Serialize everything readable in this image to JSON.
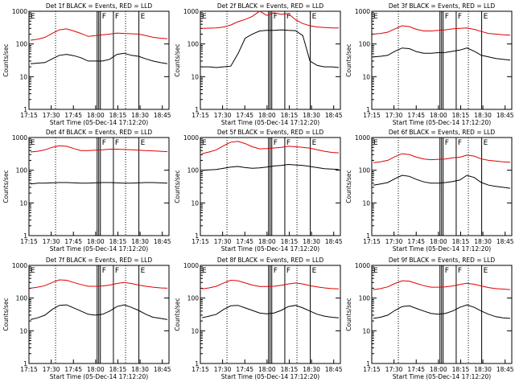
{
  "chart_data": [
    {
      "type": "line",
      "title": "Det 1f BLACK = Events, RED = LLD",
      "ylabel": "Counts/sec",
      "xlabel": "Start Time (05-Dec-14 17:12:20)",
      "x_ticks": [
        "17:15",
        "17:30",
        "17:45",
        "18:00",
        "18:15",
        "18:30",
        "18:45"
      ],
      "y_ticks": [
        "1",
        "10",
        "100",
        "1000"
      ],
      "y_scale": "log",
      "ylim": [
        1,
        1000
      ],
      "markers": [
        "E",
        "F",
        "F",
        "E"
      ],
      "series": [
        {
          "name": "Events",
          "color": "#000000",
          "values": [
            25,
            26,
            27,
            35,
            45,
            48,
            44,
            38,
            30,
            30,
            30,
            34,
            48,
            52,
            45,
            42,
            35,
            30,
            27,
            25
          ]
        },
        {
          "name": "LLD",
          "color": "#e00000",
          "values": [
            130,
            140,
            160,
            210,
            270,
            290,
            250,
            210,
            170,
            180,
            190,
            200,
            215,
            210,
            205,
            200,
            180,
            160,
            150,
            145
          ]
        }
      ]
    },
    {
      "type": "line",
      "title": "Det 2f BLACK = Events, RED = LLD",
      "ylabel": "Counts/sec",
      "xlabel": "Start Time (05-Dec-14 17:12:20)",
      "x_ticks": [
        "17:15",
        "17:30",
        "17:45",
        "18:00",
        "18:15",
        "18:30",
        "18:45"
      ],
      "y_ticks": [
        "1",
        "10",
        "100",
        "1000"
      ],
      "y_scale": "log",
      "ylim": [
        1,
        1000
      ],
      "markers": [
        "E",
        "F",
        "F",
        "E"
      ],
      "series": [
        {
          "name": "Events",
          "color": "#000000",
          "values": [
            20,
            20,
            19,
            20,
            21,
            50,
            150,
            200,
            250,
            260,
            260,
            270,
            260,
            255,
            180,
            30,
            22,
            20,
            20,
            19
          ]
        },
        {
          "name": "LLD",
          "color": "#e00000",
          "values": [
            300,
            305,
            310,
            330,
            380,
            480,
            560,
            700,
            1000,
            750,
            900,
            800,
            850,
            550,
            420,
            360,
            330,
            320,
            310,
            310
          ]
        }
      ]
    },
    {
      "type": "line",
      "title": "Det 3f BLACK = Events, RED = LLD",
      "ylabel": "Counts/sec",
      "xlabel": "Start Time (05-Dec-14 17:12:20)",
      "x_ticks": [
        "17:15",
        "17:30",
        "17:45",
        "18:00",
        "18:15",
        "18:30",
        "18:45"
      ],
      "y_ticks": [
        "1",
        "10",
        "100",
        "1000"
      ],
      "y_scale": "log",
      "ylim": [
        1,
        1000
      ],
      "markers": [
        "E",
        "F",
        "F",
        "E"
      ],
      "series": [
        {
          "name": "Events",
          "color": "#000000",
          "values": [
            40,
            42,
            45,
            60,
            75,
            72,
            58,
            52,
            52,
            54,
            55,
            60,
            65,
            75,
            60,
            45,
            40,
            36,
            34,
            32
          ]
        },
        {
          "name": "LLD",
          "color": "#e00000",
          "values": [
            200,
            210,
            230,
            290,
            360,
            340,
            280,
            250,
            250,
            260,
            270,
            290,
            300,
            310,
            280,
            240,
            210,
            200,
            190,
            185
          ]
        }
      ]
    },
    {
      "type": "line",
      "title": "Det 4f BLACK = Events, RED = LLD",
      "ylabel": "Counts/sec",
      "xlabel": "Start Time (05-Dec-14 17:12:20)",
      "x_ticks": [
        "17:15",
        "17:30",
        "17:45",
        "18:00",
        "18:15",
        "18:30",
        "18:45"
      ],
      "y_ticks": [
        "1",
        "10",
        "100",
        "1000"
      ],
      "y_scale": "log",
      "ylim": [
        1,
        1000
      ],
      "markers": [
        "E",
        "F",
        "F",
        "E"
      ],
      "series": [
        {
          "name": "Events",
          "color": "#000000",
          "values": [
            38,
            40,
            40,
            41,
            42,
            42,
            41,
            40,
            40,
            41,
            42,
            42,
            41,
            40,
            40,
            41,
            42,
            42,
            41,
            40
          ]
        },
        {
          "name": "LLD",
          "color": "#e00000",
          "values": [
            360,
            380,
            420,
            500,
            560,
            540,
            460,
            400,
            400,
            410,
            420,
            440,
            440,
            430,
            420,
            410,
            400,
            390,
            380,
            370
          ]
        }
      ]
    },
    {
      "type": "line",
      "title": "Det 5f BLACK = Events, RED = LLD",
      "ylabel": "Counts/sec",
      "xlabel": "Start Time (05-Dec-14 17:12:20)",
      "x_ticks": [
        "17:15",
        "17:30",
        "17:45",
        "18:00",
        "18:15",
        "18:30",
        "18:45"
      ],
      "y_ticks": [
        "1",
        "10",
        "100",
        "1000"
      ],
      "y_scale": "log",
      "ylim": [
        1,
        1000
      ],
      "markers": [
        "E",
        "F",
        "F",
        "E"
      ],
      "series": [
        {
          "name": "Events",
          "color": "#000000",
          "values": [
            100,
            102,
            105,
            115,
            125,
            130,
            120,
            115,
            118,
            125,
            135,
            140,
            150,
            145,
            140,
            130,
            120,
            112,
            108,
            105
          ]
        },
        {
          "name": "LLD",
          "color": "#e00000",
          "values": [
            320,
            360,
            420,
            560,
            720,
            760,
            650,
            520,
            450,
            460,
            480,
            500,
            540,
            520,
            500,
            470,
            420,
            380,
            350,
            340
          ]
        }
      ]
    },
    {
      "type": "line",
      "title": "Det 6f BLACK = Events, RED = LLD",
      "ylabel": "Counts/sec",
      "xlabel": "Start Time (05-Dec-14 17:12:20)",
      "x_ticks": [
        "17:15",
        "17:30",
        "17:45",
        "18:00",
        "18:15",
        "18:30",
        "18:45"
      ],
      "y_ticks": [
        "1",
        "10",
        "100",
        "1000"
      ],
      "y_scale": "log",
      "ylim": [
        1,
        1000
      ],
      "markers": [
        "E",
        "F",
        "F",
        "E"
      ],
      "series": [
        {
          "name": "Events",
          "color": "#000000",
          "values": [
            35,
            38,
            42,
            55,
            70,
            65,
            52,
            44,
            40,
            40,
            42,
            45,
            50,
            70,
            60,
            42,
            35,
            32,
            30,
            28
          ]
        },
        {
          "name": "LLD",
          "color": "#e00000",
          "values": [
            170,
            180,
            200,
            260,
            320,
            300,
            250,
            220,
            210,
            215,
            220,
            240,
            250,
            290,
            270,
            220,
            200,
            190,
            180,
            175
          ]
        }
      ]
    },
    {
      "type": "line",
      "title": "Det 7f BLACK = Events, RED = LLD",
      "ylabel": "Counts/sec",
      "xlabel": "Start Time (05-Dec-14 17:12:20)",
      "x_ticks": [
        "17:15",
        "17:30",
        "17:45",
        "18:00",
        "18:15",
        "18:30",
        "18:45"
      ],
      "y_ticks": [
        "1",
        "10",
        "100",
        "1000"
      ],
      "y_scale": "log",
      "ylim": [
        1,
        1000
      ],
      "markers": [
        "E",
        "F",
        "F",
        "E"
      ],
      "series": [
        {
          "name": "Events",
          "color": "#000000",
          "values": [
            22,
            25,
            30,
            45,
            60,
            62,
            50,
            40,
            32,
            30,
            32,
            40,
            55,
            62,
            52,
            42,
            32,
            26,
            24,
            22
          ]
        },
        {
          "name": "LLD",
          "color": "#e00000",
          "values": [
            200,
            215,
            240,
            300,
            360,
            350,
            300,
            260,
            230,
            230,
            235,
            250,
            280,
            300,
            280,
            250,
            230,
            215,
            205,
            200
          ]
        }
      ]
    },
    {
      "type": "line",
      "title": "Det 8f BLACK = Events, RED = LLD",
      "ylabel": "Counts/sec",
      "xlabel": "Start Time (05-Dec-14 17:12:20)",
      "x_ticks": [
        "17:15",
        "17:30",
        "17:45",
        "18:00",
        "18:15",
        "18:30",
        "18:45"
      ],
      "y_ticks": [
        "1",
        "10",
        "100",
        "1000"
      ],
      "y_scale": "log",
      "ylim": [
        1,
        1000
      ],
      "markers": [
        "E",
        "F",
        "F",
        "E"
      ],
      "series": [
        {
          "name": "Events",
          "color": "#000000",
          "values": [
            25,
            28,
            32,
            45,
            58,
            60,
            50,
            42,
            35,
            33,
            35,
            42,
            55,
            60,
            50,
            40,
            32,
            28,
            26,
            25
          ]
        },
        {
          "name": "LLD",
          "color": "#e00000",
          "values": [
            190,
            205,
            230,
            290,
            350,
            340,
            290,
            250,
            225,
            225,
            230,
            245,
            270,
            290,
            270,
            240,
            220,
            205,
            195,
            190
          ]
        }
      ]
    },
    {
      "type": "line",
      "title": "Det 9f BLACK = Events, RED = LLD",
      "ylabel": "Counts/sec",
      "xlabel": "Start Time (05-Dec-14 17:12:20)",
      "x_ticks": [
        "17:15",
        "17:30",
        "17:45",
        "18:00",
        "18:15",
        "18:30",
        "18:45"
      ],
      "y_ticks": [
        "1",
        "10",
        "100",
        "1000"
      ],
      "y_scale": "log",
      "ylim": [
        1,
        1000
      ],
      "markers": [
        "E",
        "F",
        "F",
        "E"
      ],
      "series": [
        {
          "name": "Events",
          "color": "#000000",
          "values": [
            24,
            26,
            30,
            42,
            55,
            58,
            48,
            40,
            34,
            32,
            34,
            40,
            52,
            62,
            52,
            40,
            32,
            27,
            25,
            24
          ]
        },
        {
          "name": "LLD",
          "color": "#e00000",
          "values": [
            180,
            195,
            220,
            280,
            340,
            330,
            280,
            240,
            215,
            215,
            220,
            235,
            260,
            285,
            265,
            235,
            210,
            195,
            188,
            182
          ]
        }
      ]
    }
  ]
}
